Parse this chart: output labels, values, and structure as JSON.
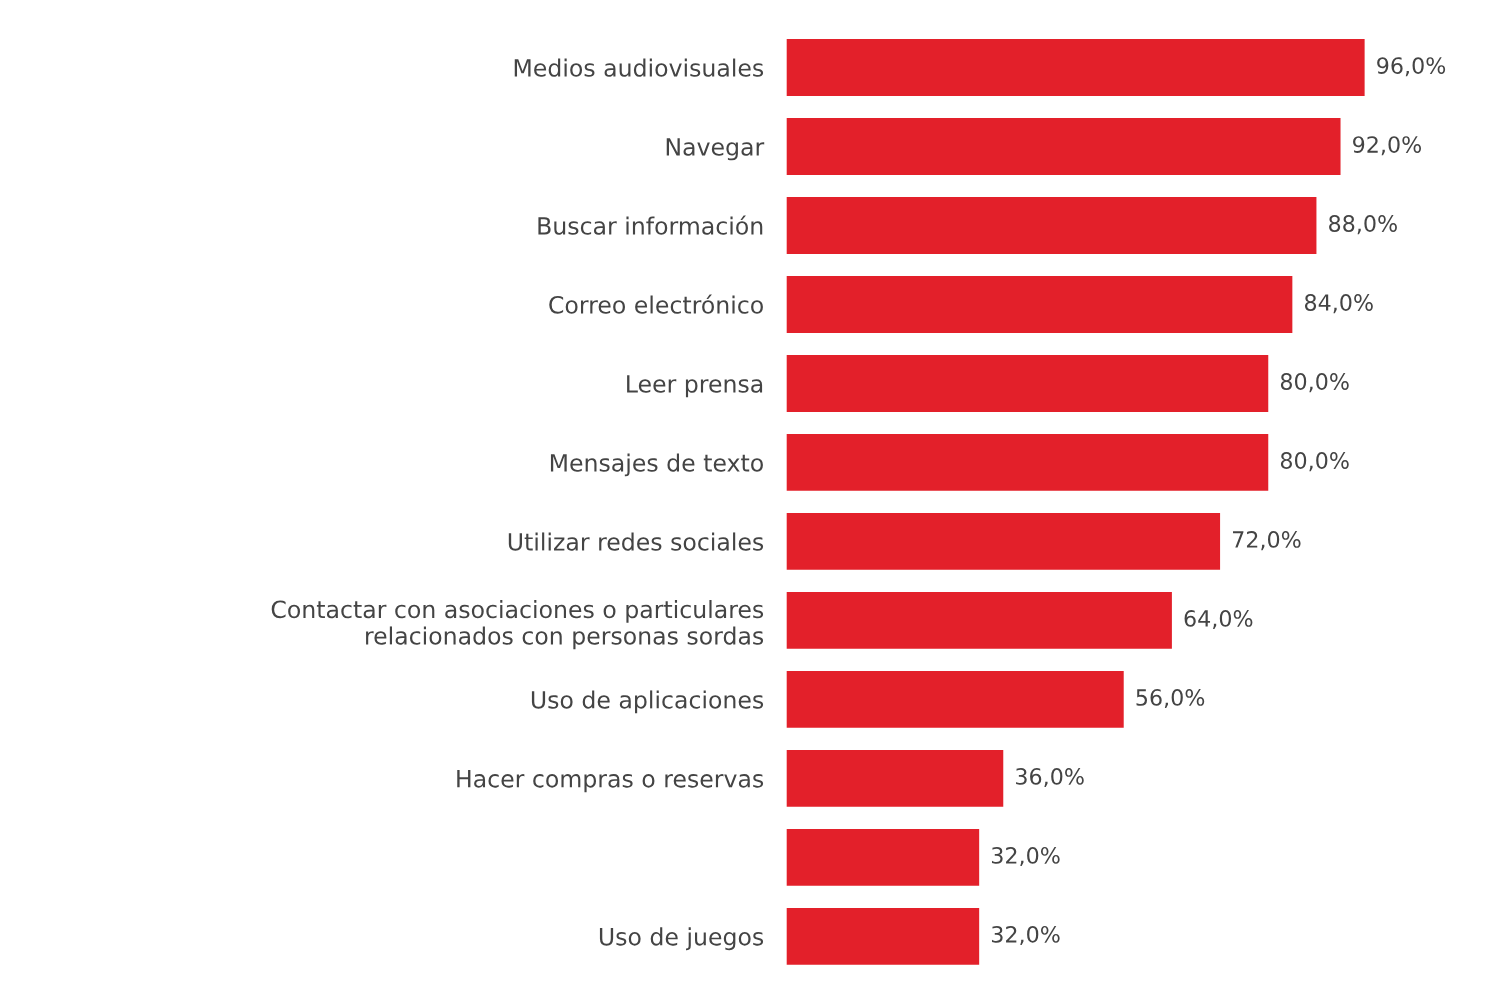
{
  "chart_data": {
    "type": "bar",
    "orientation": "horizontal",
    "categories": [
      "Medios audiovisuales",
      "Navegar",
      "Buscar información",
      "Correo electrónico",
      "Leer prensa",
      "Mensajes de texto",
      "Utilizar redes sociales",
      "Contactar con asociaciones o particulares\nrelacionados con personas sordas",
      "Uso de aplicaciones",
      "Hacer compras o reservas",
      null,
      "Uso de juegos"
    ],
    "values": [
      96.0,
      92.0,
      88.0,
      84.0,
      80.0,
      80.0,
      72.0,
      64.0,
      56.0,
      36.0,
      32.0,
      32.0
    ],
    "value_labels": [
      "96,0%",
      "92,0%",
      "88,0%",
      "84,0%",
      "80,0%",
      "80,0%",
      "72,0%",
      "64,0%",
      "56,0%",
      "36,0%",
      "32,0%",
      "32,0%"
    ],
    "color": "#e3202a",
    "grid": false,
    "legend": false
  }
}
